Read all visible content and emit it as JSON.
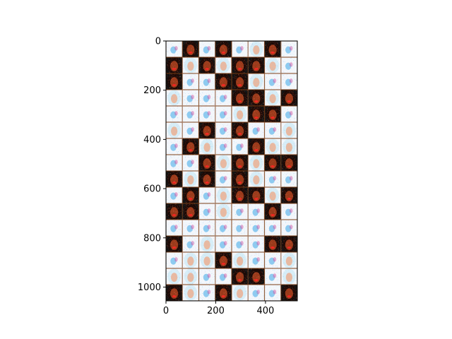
{
  "chart_data": {
    "type": "image",
    "title": "",
    "xlabel": "",
    "ylabel": "",
    "xlim": [
      0,
      528
    ],
    "ylim": [
      1056,
      0
    ],
    "x_ticks": [
      {
        "value": 0,
        "label": "0"
      },
      {
        "value": 200,
        "label": "200"
      },
      {
        "value": 400,
        "label": "400"
      }
    ],
    "y_ticks": [
      {
        "value": 0,
        "label": "0"
      },
      {
        "value": 200,
        "label": "200"
      },
      {
        "value": 400,
        "label": "400"
      },
      {
        "value": 600,
        "label": "600"
      },
      {
        "value": 800,
        "label": "800"
      },
      {
        "value": 1000,
        "label": "1000"
      }
    ],
    "image": {
      "content": "grid of noisy generated face portraits",
      "columns": 8,
      "rows": 16,
      "tile_size": 66
    }
  },
  "colors": {
    "light_tile": "#f4f7fb",
    "light_noise_blue": "#3aa7e8",
    "light_noise_magenta": "#d04a9c",
    "dark_tile": "#121212",
    "skin": "#9a3a1a",
    "red_noise": "#ff2020",
    "gold_noise": "#ffd24a",
    "cyan_noise": "#5fd0ff",
    "blonde_hair": "#d8eef7"
  }
}
